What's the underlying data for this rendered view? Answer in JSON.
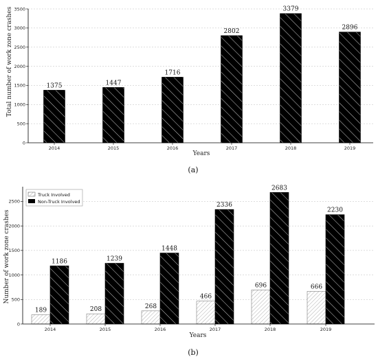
{
  "colors": {
    "bar_fill": "#000000",
    "hatch_on_dark": "#ffffff",
    "truck_fill": "#ffffff",
    "truck_hatch": "#888888",
    "grid": "#bbbbbb"
  },
  "chart_data": [
    {
      "type": "bar",
      "categories": [
        "2014",
        "2015",
        "2016",
        "2017",
        "2018",
        "2019"
      ],
      "values": [
        1375,
        1447,
        1716,
        2802,
        3379,
        2896
      ],
      "xlabel": "Years",
      "ylabel": "Total number of work zone crashes",
      "ylim": [
        0,
        3500
      ],
      "yticks": [
        0,
        500,
        1000,
        1500,
        2000,
        2500,
        3000,
        3500
      ],
      "grid": "horizontal dashed",
      "caption": "(a)"
    },
    {
      "type": "bar",
      "categories": [
        "2014",
        "2015",
        "2016",
        "2017",
        "2018",
        "2019"
      ],
      "series": [
        {
          "name": "Truck Involved",
          "values": [
            189,
            208,
            268,
            466,
            696,
            666
          ]
        },
        {
          "name": "Non-Truck Involved",
          "values": [
            1186,
            1239,
            1448,
            2336,
            2683,
            2230
          ]
        }
      ],
      "xlabel": "Years",
      "ylabel": "Number of work zone crashes",
      "ylim": [
        0,
        2800
      ],
      "yticks": [
        0,
        500,
        1000,
        1500,
        2000,
        2500
      ],
      "grid": "horizontal dashed",
      "legend": "top-left",
      "caption": "(b)"
    }
  ]
}
